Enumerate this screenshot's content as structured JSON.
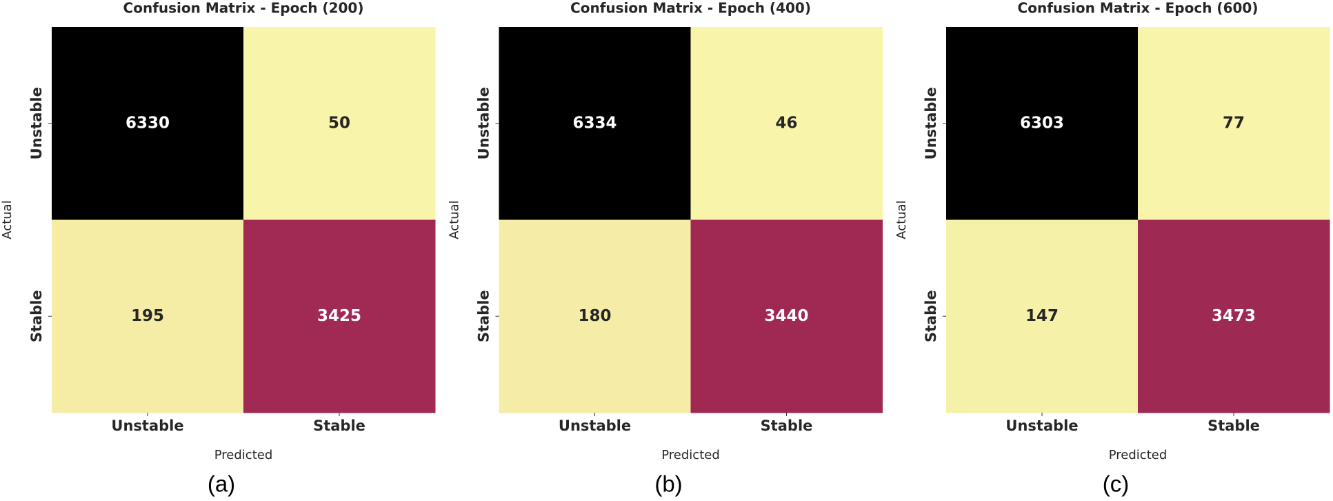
{
  "chart_data": [
    {
      "type": "heatmap",
      "title": "Confusion Matrix - Epoch (200)",
      "xlabel": "Predicted",
      "ylabel": "Actual",
      "x_categories": [
        "Unstable",
        "Stable"
      ],
      "y_categories": [
        "Unstable",
        "Stable"
      ],
      "values": [
        [
          6330,
          50
        ],
        [
          195,
          3425
        ]
      ],
      "colors": [
        "#f8f5aa",
        "#ae2d5b",
        "#000000"
      ],
      "caption": "(a)"
    },
    {
      "type": "heatmap",
      "title": "Confusion Matrix - Epoch (400)",
      "xlabel": "Predicted",
      "ylabel": "Actual",
      "x_categories": [
        "Unstable",
        "Stable"
      ],
      "y_categories": [
        "Unstable",
        "Stable"
      ],
      "values": [
        [
          6334,
          46
        ],
        [
          180,
          3440
        ]
      ],
      "colors": [
        "#f8f5aa",
        "#ae2d5b",
        "#000000"
      ],
      "caption": "(b)"
    },
    {
      "type": "heatmap",
      "title": "Confusion Matrix - Epoch (600)",
      "xlabel": "Predicted",
      "ylabel": "Actual",
      "x_categories": [
        "Unstable",
        "Stable"
      ],
      "y_categories": [
        "Unstable",
        "Stable"
      ],
      "values": [
        [
          6303,
          77
        ],
        [
          147,
          3473
        ]
      ],
      "colors": [
        "#f8f5aa",
        "#ae2d5b",
        "#000000"
      ],
      "caption": "(c)"
    }
  ]
}
